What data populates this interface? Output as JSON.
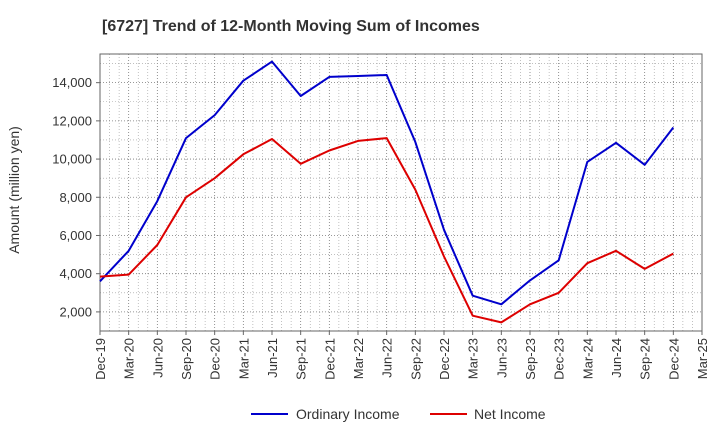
{
  "chart_data": {
    "type": "line",
    "title": "[6727]  Trend of 12-Month Moving Sum of Incomes",
    "xlabel": "",
    "ylabel": "Amount (million yen)",
    "ylim": [
      1000,
      15500
    ],
    "yticks": [
      2000,
      4000,
      6000,
      8000,
      10000,
      12000,
      14000
    ],
    "ytick_labels": [
      "2,000",
      "4,000",
      "6,000",
      "8,000",
      "10,000",
      "12,000",
      "14,000"
    ],
    "grid": true,
    "legend_position": "bottom",
    "categories": [
      "Dec-19",
      "Mar-20",
      "Jun-20",
      "Sep-20",
      "Dec-20",
      "Mar-21",
      "Jun-21",
      "Sep-21",
      "Dec-21",
      "Mar-22",
      "Jun-22",
      "Sep-22",
      "Dec-22",
      "Mar-23",
      "Jun-23",
      "Sep-23",
      "Dec-23",
      "Mar-24",
      "Jun-24",
      "Sep-24",
      "Dec-24",
      "Mar-25"
    ],
    "series": [
      {
        "name": "Ordinary Income",
        "color": "#0000cc",
        "values": [
          3600,
          5200,
          7800,
          11100,
          12300,
          14100,
          15100,
          13300,
          14300,
          14350,
          14400,
          10900,
          6300,
          2850,
          2400,
          3650,
          4700,
          9850,
          10850,
          9700,
          11650,
          null
        ]
      },
      {
        "name": "Net Income",
        "color": "#dd0000",
        "values": [
          3850,
          3950,
          5500,
          8000,
          9000,
          10250,
          11050,
          9750,
          10450,
          10950,
          11100,
          8400,
          4900,
          1800,
          1450,
          2400,
          3000,
          4550,
          5200,
          4250,
          5050,
          null
        ]
      }
    ]
  }
}
